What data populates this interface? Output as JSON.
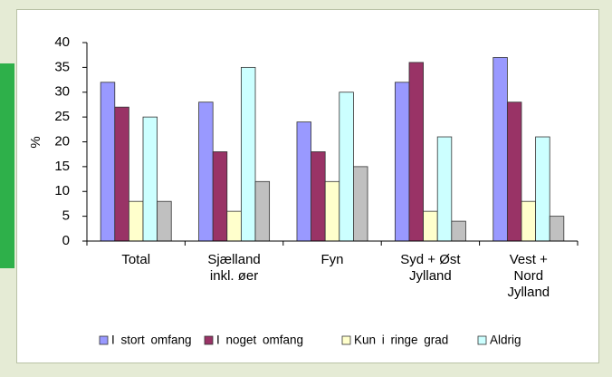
{
  "chart_data": {
    "type": "bar",
    "ylabel": "%",
    "categories": [
      "Total",
      "Sjælland\ninkl. øer",
      "Fyn",
      "Syd  +  Øst\nJylland",
      "Vest  +\nNord\nJylland"
    ],
    "series": [
      {
        "name": "I stort omfang",
        "color": "#9999ff",
        "values": [
          32,
          28,
          24,
          32,
          37
        ]
      },
      {
        "name": "I noget omfang",
        "color": "#993366",
        "values": [
          27,
          18,
          18,
          36,
          28
        ]
      },
      {
        "name": "Kun i ringe grad",
        "color": "#ffffcc",
        "values": [
          8,
          6,
          12,
          6,
          8
        ]
      },
      {
        "name": "Aldrig",
        "color": "#ccffff",
        "values": [
          25,
          35,
          30,
          21,
          21
        ]
      },
      {
        "color": "#c0c0c0",
        "values": [
          8,
          12,
          15,
          4,
          5
        ]
      }
    ],
    "ylim": [
      0,
      40
    ],
    "yticks": [
      0,
      5,
      10,
      15,
      20,
      25,
      30,
      35,
      40
    ],
    "grid": false
  }
}
